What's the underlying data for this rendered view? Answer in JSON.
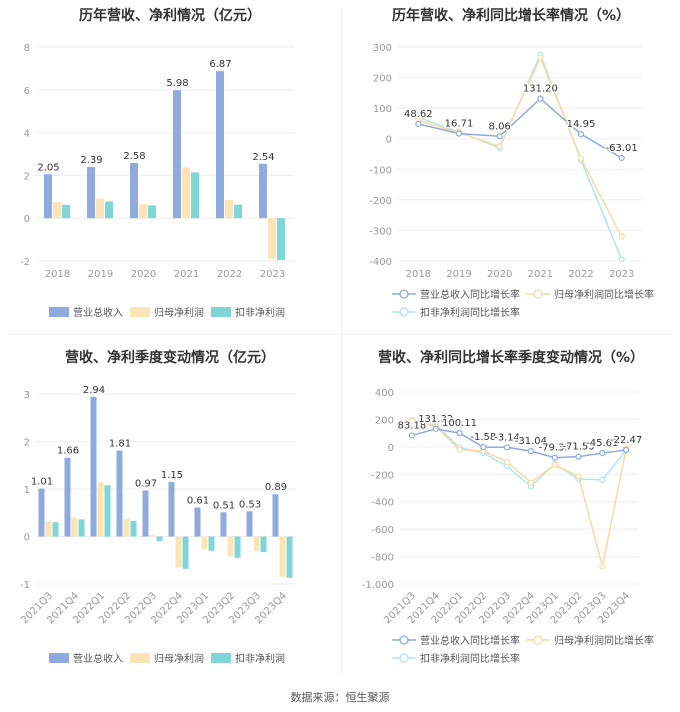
{
  "source": "数据来源：恒生聚源",
  "colors": {
    "revenue": "#8faadc",
    "net": "#fce4b6",
    "deducted": "#7fd6d6",
    "revenue_line": "#8ea9dc",
    "net_line": "#fcd9a0",
    "deducted_line": "#aee6ee",
    "grid": "#eeeeee",
    "axis_text": "#999999"
  },
  "chart_data": [
    {
      "id": "annual_bar",
      "type": "bar",
      "title": "历年营收、净利情况（亿元）",
      "categories": [
        "2018",
        "2019",
        "2020",
        "2021",
        "2022",
        "2023"
      ],
      "ylim": [
        -2,
        8
      ],
      "yticks": [
        "-2",
        "0",
        "2",
        "4",
        "6",
        "8"
      ],
      "series": [
        {
          "name": "营业总收入",
          "values": [
            2.05,
            2.39,
            2.58,
            5.98,
            6.87,
            2.54
          ]
        },
        {
          "name": "归母净利润",
          "values": [
            0.75,
            0.92,
            0.65,
            2.38,
            0.85,
            -1.9
          ]
        },
        {
          "name": "扣非净利润",
          "values": [
            0.62,
            0.78,
            0.6,
            2.14,
            0.63,
            -1.95
          ]
        }
      ],
      "labels": [
        "2.05",
        "2.39",
        "2.58",
        "5.98",
        "6.87",
        "2.54"
      ]
    },
    {
      "id": "annual_line",
      "type": "line",
      "title": "历年营收、净利同比增长率情况（%）",
      "categories": [
        "2018",
        "2019",
        "2020",
        "2021",
        "2022",
        "2023"
      ],
      "ylim": [
        -400,
        300
      ],
      "yticks": [
        "-400",
        "-300",
        "-200",
        "-100",
        "0",
        "100",
        "200",
        "300"
      ],
      "series": [
        {
          "name": "营业总收入同比增长率",
          "values": [
            48.62,
            16.71,
            8.06,
            131.2,
            14.95,
            -63.01
          ]
        },
        {
          "name": "归母净利润同比增长率",
          "values": [
            60,
            20,
            -25,
            265,
            -65,
            -320
          ]
        },
        {
          "name": "扣非净利润同比增长率",
          "values": [
            70,
            22,
            -30,
            275,
            -70,
            -395
          ]
        }
      ],
      "labels": [
        "48.62",
        "16.71",
        "8.06",
        "131.20",
        "14.95",
        "-63.01"
      ]
    },
    {
      "id": "quarter_bar",
      "type": "bar",
      "title": "营收、净利季度变动情况（亿元）",
      "categories": [
        "2021Q3",
        "2021Q4",
        "2022Q1",
        "2022Q2",
        "2022Q3",
        "2022Q4",
        "2023Q1",
        "2023Q2",
        "2023Q3",
        "2023Q4"
      ],
      "ylim": [
        -1,
        3
      ],
      "yticks": [
        "-1",
        "0",
        "1",
        "2",
        "3"
      ],
      "series": [
        {
          "name": "营业总收入",
          "values": [
            1.01,
            1.66,
            2.94,
            1.81,
            0.97,
            1.15,
            0.61,
            0.51,
            0.53,
            0.89
          ]
        },
        {
          "name": "归母净利润",
          "values": [
            0.32,
            0.4,
            1.15,
            0.37,
            0.03,
            -0.65,
            -0.27,
            -0.42,
            -0.3,
            -0.85
          ]
        },
        {
          "name": "扣非净利润",
          "values": [
            0.3,
            0.36,
            1.08,
            0.33,
            -0.1,
            -0.68,
            -0.3,
            -0.45,
            -0.33,
            -0.87
          ]
        }
      ],
      "labels": [
        "1.01",
        "1.66",
        "2.94",
        "1.81",
        "0.97",
        "1.15",
        "0.61",
        "0.51",
        "0.53",
        "0.89"
      ]
    },
    {
      "id": "quarter_line",
      "type": "line",
      "title": "营收、净利同比增长率季度变动情况（%）",
      "categories": [
        "2021Q3",
        "2021Q4",
        "2022Q1",
        "2022Q2",
        "2022Q3",
        "2022Q4",
        "2023Q1",
        "2023Q2",
        "2023Q3",
        "2023Q4"
      ],
      "ylim": [
        -1000,
        400
      ],
      "yticks": [
        "-1,000",
        "-800",
        "-600",
        "-400",
        "-200",
        "0",
        "200",
        "400"
      ],
      "series": [
        {
          "name": "营业总收入同比增长率",
          "values": [
            83.18,
            131.32,
            100.11,
            -1.58,
            -3.14,
            -31.04,
            -79.35,
            -71.55,
            -45.61,
            -22.47
          ]
        },
        {
          "name": "归母净利润同比增长率",
          "values": [
            190,
            150,
            -20,
            -30,
            -110,
            -260,
            -130,
            -215,
            -870,
            -15
          ]
        },
        {
          "name": "扣非净利润同比增长率",
          "values": [
            195,
            160,
            -5,
            -45,
            -140,
            -290,
            -125,
            -235,
            -240,
            -25
          ]
        }
      ],
      "labels": [
        "83.18",
        "131.32",
        "100.11",
        "-1.58",
        "-3.14",
        "-31.04",
        "-79.35",
        "-71.55",
        "-45.61",
        "-22.47"
      ]
    }
  ]
}
